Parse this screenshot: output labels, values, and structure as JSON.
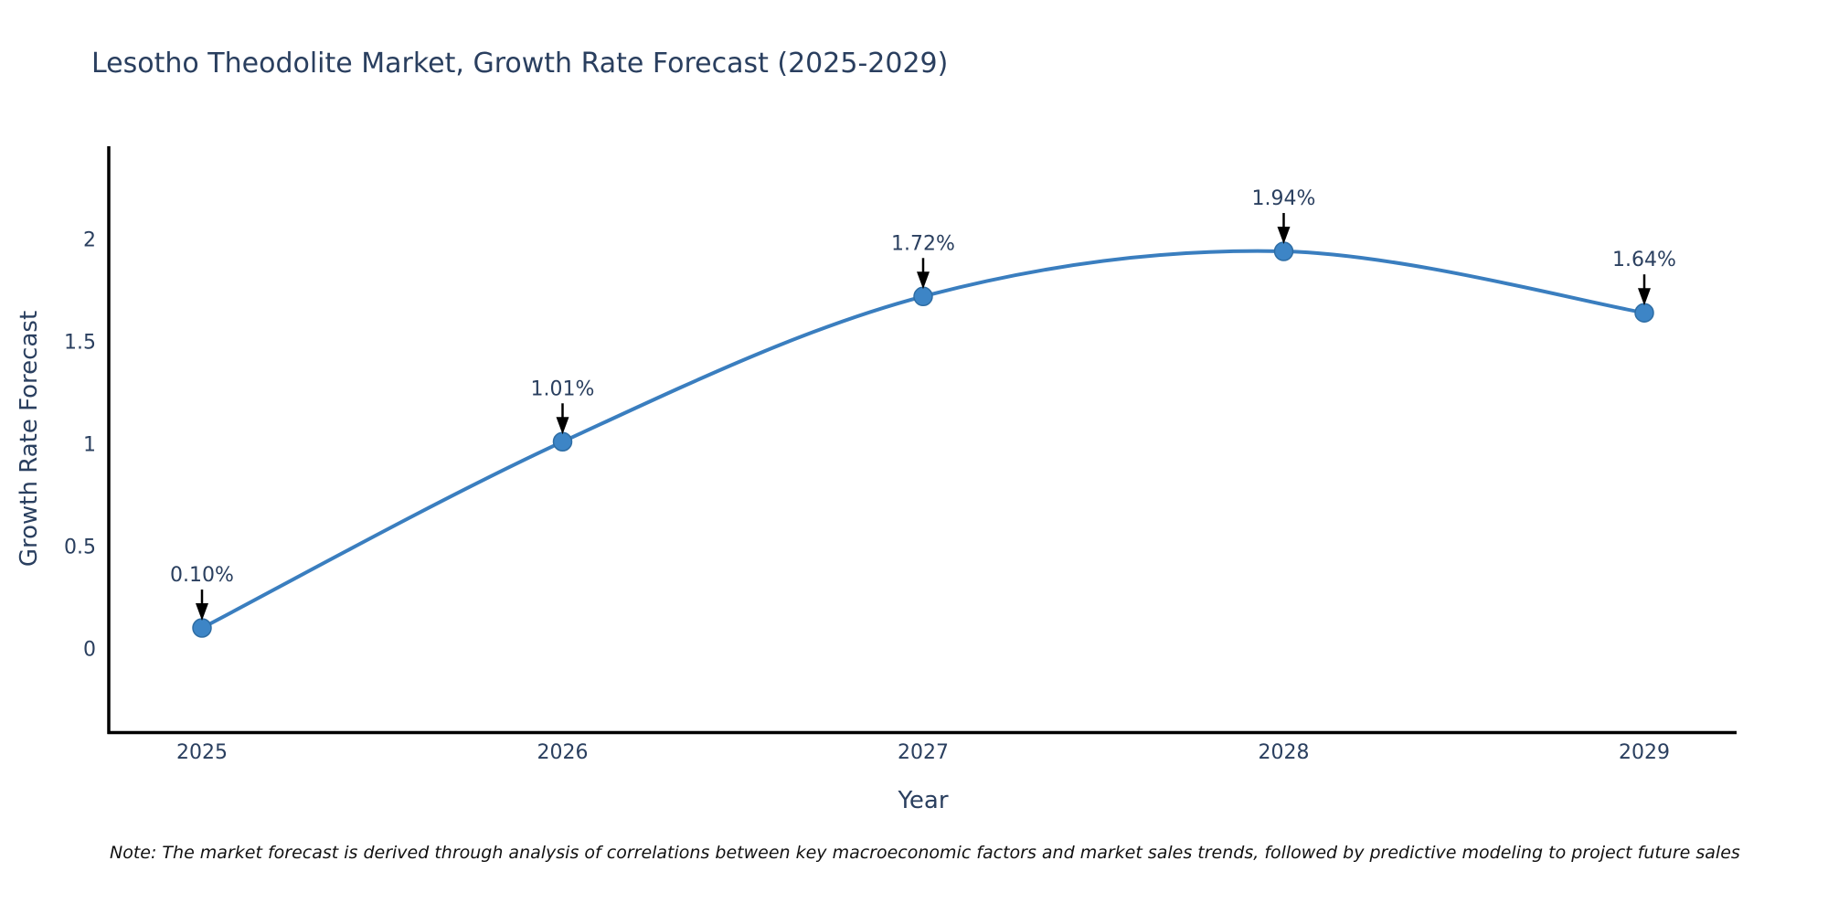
{
  "chart_data": {
    "type": "line",
    "title": "Lesotho Theodolite Market, Growth Rate Forecast (2025-2029)",
    "xlabel": "Year",
    "ylabel": "Growth Rate Forecast",
    "x": [
      2025,
      2026,
      2027,
      2028,
      2029
    ],
    "y": [
      0.1,
      1.01,
      1.72,
      1.94,
      1.64
    ],
    "point_labels": [
      "0.10%",
      "1.01%",
      "1.72%",
      "1.94%",
      "1.64%"
    ],
    "x_tick_labels": [
      "2025",
      "2026",
      "2027",
      "2028",
      "2029"
    ],
    "y_ticks": [
      0,
      0.5,
      1,
      1.5,
      2
    ],
    "y_tick_labels": [
      "0",
      "0.5",
      "1",
      "1.5",
      "2"
    ],
    "xlim": [
      2024.74,
      2029.26
    ],
    "ylim": [
      -0.41,
      2.45
    ],
    "grid": false,
    "legend": "none",
    "line_color": "#3a7ebf",
    "marker_color": "#3d85c6",
    "marker_edge_color": "#2e6da4",
    "axis_color": "#000000",
    "tick_label_color": "#2a3f5f",
    "title_color": "#2a3f5f",
    "annotation_color": "#2a3f5f",
    "annotation_arrow_color": "#000000",
    "note": "Note: The market forecast is derived through analysis of correlations between key macroeconomic factors and market sales trends, followed by predictive modeling to project future sales"
  }
}
